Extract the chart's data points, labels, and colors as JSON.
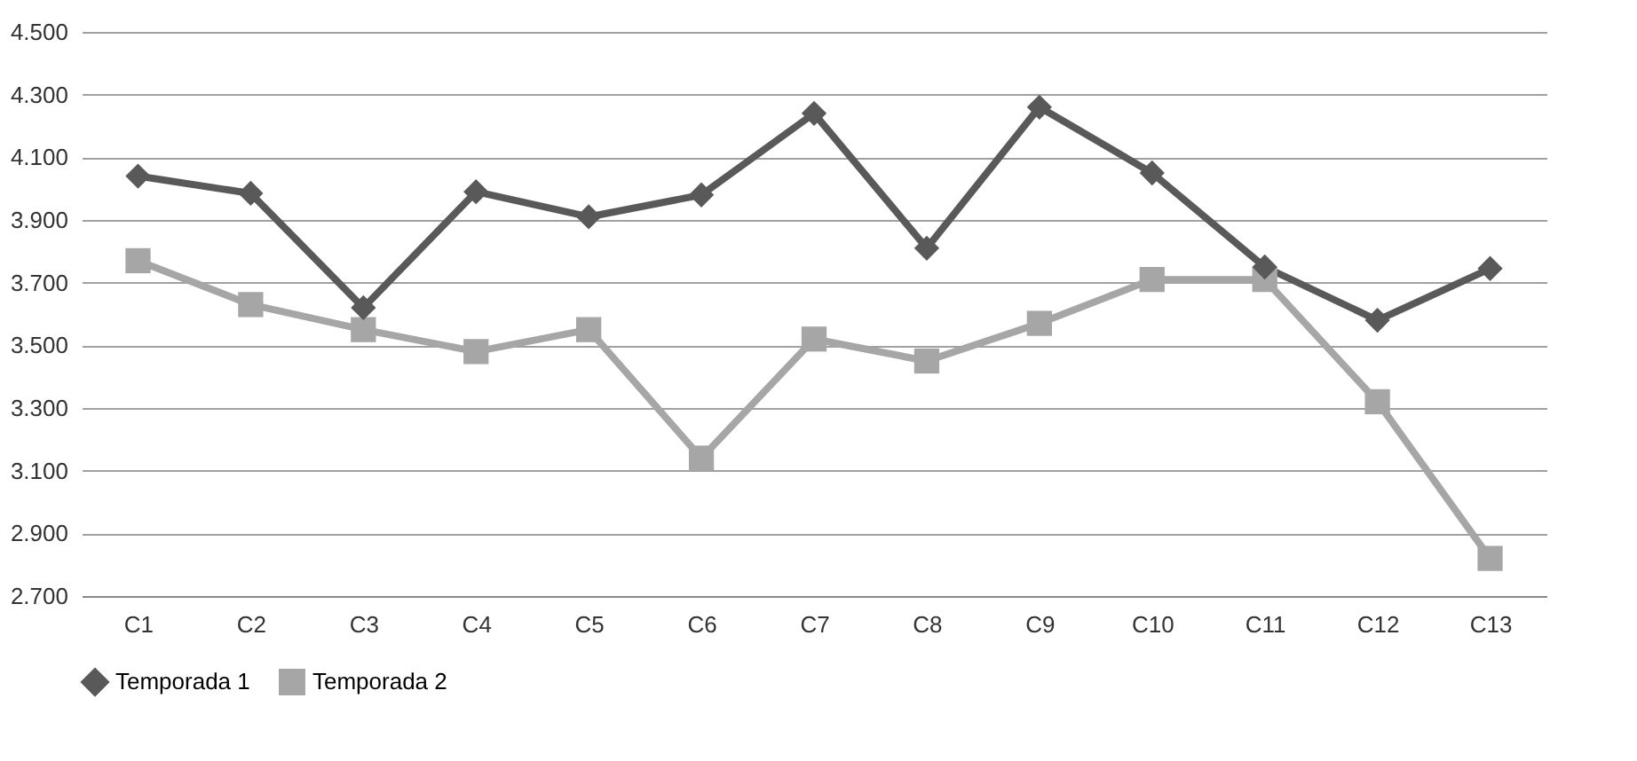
{
  "chart_data": {
    "type": "line",
    "categories": [
      "C1",
      "C2",
      "C3",
      "C4",
      "C5",
      "C6",
      "C7",
      "C8",
      "C9",
      "C10",
      "C11",
      "C12",
      "C13"
    ],
    "series": [
      {
        "name": "Temporada 1",
        "color": "#595959",
        "marker": "diamond",
        "values": [
          4040,
          3985,
          3620,
          3990,
          3910,
          3980,
          4240,
          3810,
          4260,
          4050,
          3750,
          3580,
          3745
        ]
      },
      {
        "name": "Temporada 2",
        "color": "#a6a6a6",
        "marker": "square",
        "values": [
          3770,
          3630,
          3550,
          3480,
          3550,
          3140,
          3520,
          3450,
          3570,
          3710,
          3710,
          3320,
          2820
        ]
      }
    ],
    "ylim": [
      2700,
      4500
    ],
    "yticks": [
      {
        "value": 2700,
        "label": "2.700"
      },
      {
        "value": 2900,
        "label": "2.900"
      },
      {
        "value": 3100,
        "label": "3.100"
      },
      {
        "value": 3300,
        "label": "3.300"
      },
      {
        "value": 3500,
        "label": "3.500"
      },
      {
        "value": 3700,
        "label": "3.700"
      },
      {
        "value": 3900,
        "label": "3.900"
      },
      {
        "value": 4100,
        "label": "4.100"
      },
      {
        "value": 4300,
        "label": "4.300"
      },
      {
        "value": 4500,
        "label": "4.500"
      }
    ],
    "grid": "y",
    "legend": "bottom",
    "line_style": "solid"
  }
}
